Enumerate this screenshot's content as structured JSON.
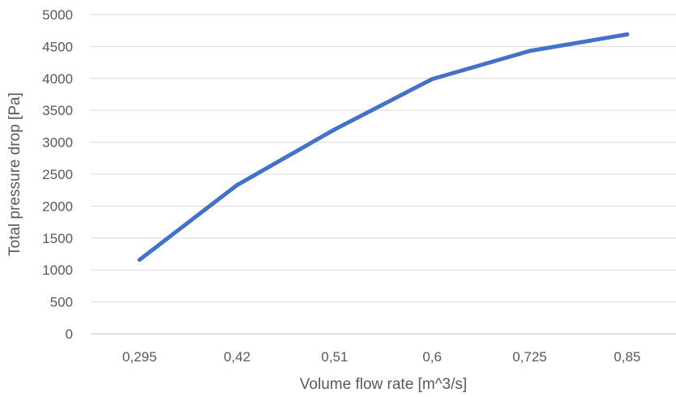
{
  "chart_data": {
    "type": "line",
    "title": "",
    "xlabel": "Volume flow rate [m^3/s]",
    "ylabel": "Total pressure drop [Pa]",
    "categories": [
      "0,295",
      "0,42",
      "0,51",
      "0,6",
      "0,725",
      "0,85"
    ],
    "series": [
      {
        "values": [
          1160,
          2330,
          3200,
          3990,
          4430,
          4690
        ]
      }
    ],
    "ylim": [
      0,
      5000
    ],
    "yticks": [
      0,
      500,
      1000,
      1500,
      2000,
      2500,
      3000,
      3500,
      4000,
      4500,
      5000
    ],
    "grid": true,
    "legend": "none",
    "colors": {
      "series": "#4472c4"
    }
  }
}
